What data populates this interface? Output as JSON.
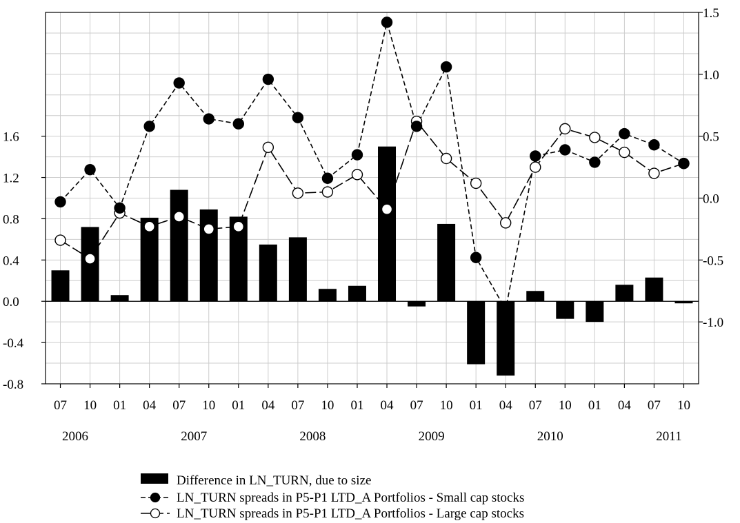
{
  "chart_data": {
    "type": "bar+line",
    "title": "",
    "x_month_labels": [
      "07",
      "10",
      "01",
      "04",
      "07",
      "10",
      "01",
      "04",
      "07",
      "10",
      "01",
      "04",
      "07",
      "10",
      "01",
      "04",
      "07",
      "10",
      "01",
      "04",
      "07",
      "10"
    ],
    "x_year_labels": [
      "2006",
      "2007",
      "2008",
      "2009",
      "2010",
      "2011"
    ],
    "left_axis": {
      "ylim": [
        -0.8,
        2.8
      ],
      "ticks": [
        "-0.8",
        "-0.4",
        "0.0",
        "0.4",
        "0.8",
        "1.2",
        "1.6"
      ]
    },
    "right_axis": {
      "ylim": [
        -1.5,
        1.5
      ],
      "ticks": [
        "-1.0",
        "-0.5",
        "0.0",
        "0.5",
        "1.0",
        "1.5"
      ]
    },
    "grid": true,
    "legend_position": "bottom-center",
    "series": [
      {
        "name": "Difference in LN_TURN, due to size",
        "type": "bar",
        "axis": "left",
        "color": "#000000",
        "values": [
          0.3,
          0.72,
          0.06,
          0.81,
          1.08,
          0.89,
          0.82,
          0.55,
          0.62,
          0.12,
          0.15,
          1.5,
          -0.05,
          0.75,
          -0.61,
          -0.72,
          0.1,
          -0.17,
          -0.2,
          0.16,
          0.23,
          -0.02
        ]
      },
      {
        "name": "LN_TURN spreads in P5-P1 LTD_A Portfolios - Small cap stocks",
        "type": "line",
        "style": "dashed",
        "marker": "filled-circle",
        "axis": "right",
        "color": "#000000",
        "values": [
          -0.03,
          0.23,
          -0.08,
          0.58,
          0.93,
          0.64,
          0.6,
          0.96,
          0.65,
          0.16,
          0.35,
          1.42,
          0.58,
          1.06,
          -0.48,
          -0.9,
          0.34,
          0.39,
          0.29,
          0.52,
          0.43,
          0.28
        ]
      },
      {
        "name": "LN_TURN spreads in P5-P1 LTD_A Portfolios - Large cap stocks",
        "type": "line",
        "style": "long-dash",
        "marker": "open-circle",
        "axis": "right",
        "color": "#000000",
        "values": [
          -0.34,
          -0.49,
          -0.12,
          -0.23,
          -0.15,
          -0.25,
          -0.23,
          0.41,
          0.04,
          0.05,
          0.19,
          -0.09,
          0.62,
          0.32,
          0.12,
          -0.2,
          0.25,
          0.56,
          0.49,
          0.37,
          0.2,
          0.28
        ]
      }
    ]
  }
}
